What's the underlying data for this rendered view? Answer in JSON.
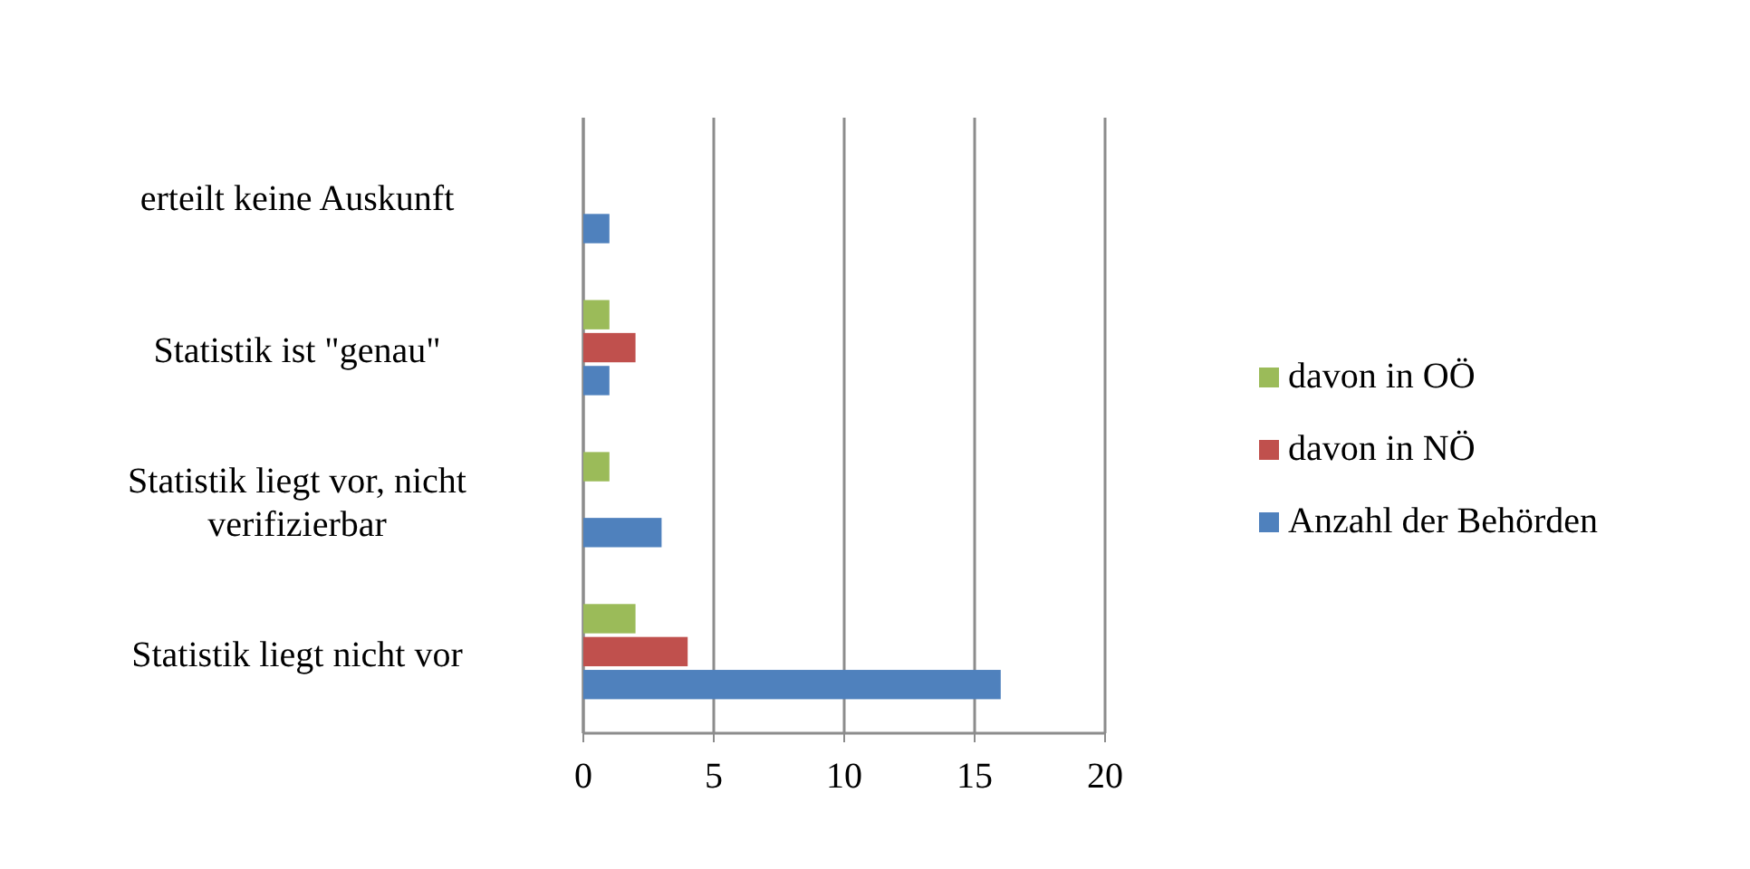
{
  "chart_data": {
    "type": "bar",
    "orientation": "horizontal",
    "categories": [
      "erteilt keine Auskunft",
      "Statistik ist \"genau\"",
      "Statistik liegt vor, nicht verifizierbar",
      "Statistik liegt nicht vor"
    ],
    "series": [
      {
        "name": "Anzahl der Behörden",
        "color": "#4f81bd",
        "values": [
          1,
          1,
          3,
          16
        ]
      },
      {
        "name": "davon in NÖ",
        "color": "#c0504d",
        "values": [
          0,
          2,
          0,
          4
        ]
      },
      {
        "name": "davon in OÖ",
        "color": "#9bbb59",
        "values": [
          0,
          1,
          1,
          2
        ]
      }
    ],
    "xlim": [
      0,
      20
    ],
    "xticks": [
      0,
      5,
      10,
      15,
      20
    ],
    "grid": "x",
    "legend": "right"
  }
}
